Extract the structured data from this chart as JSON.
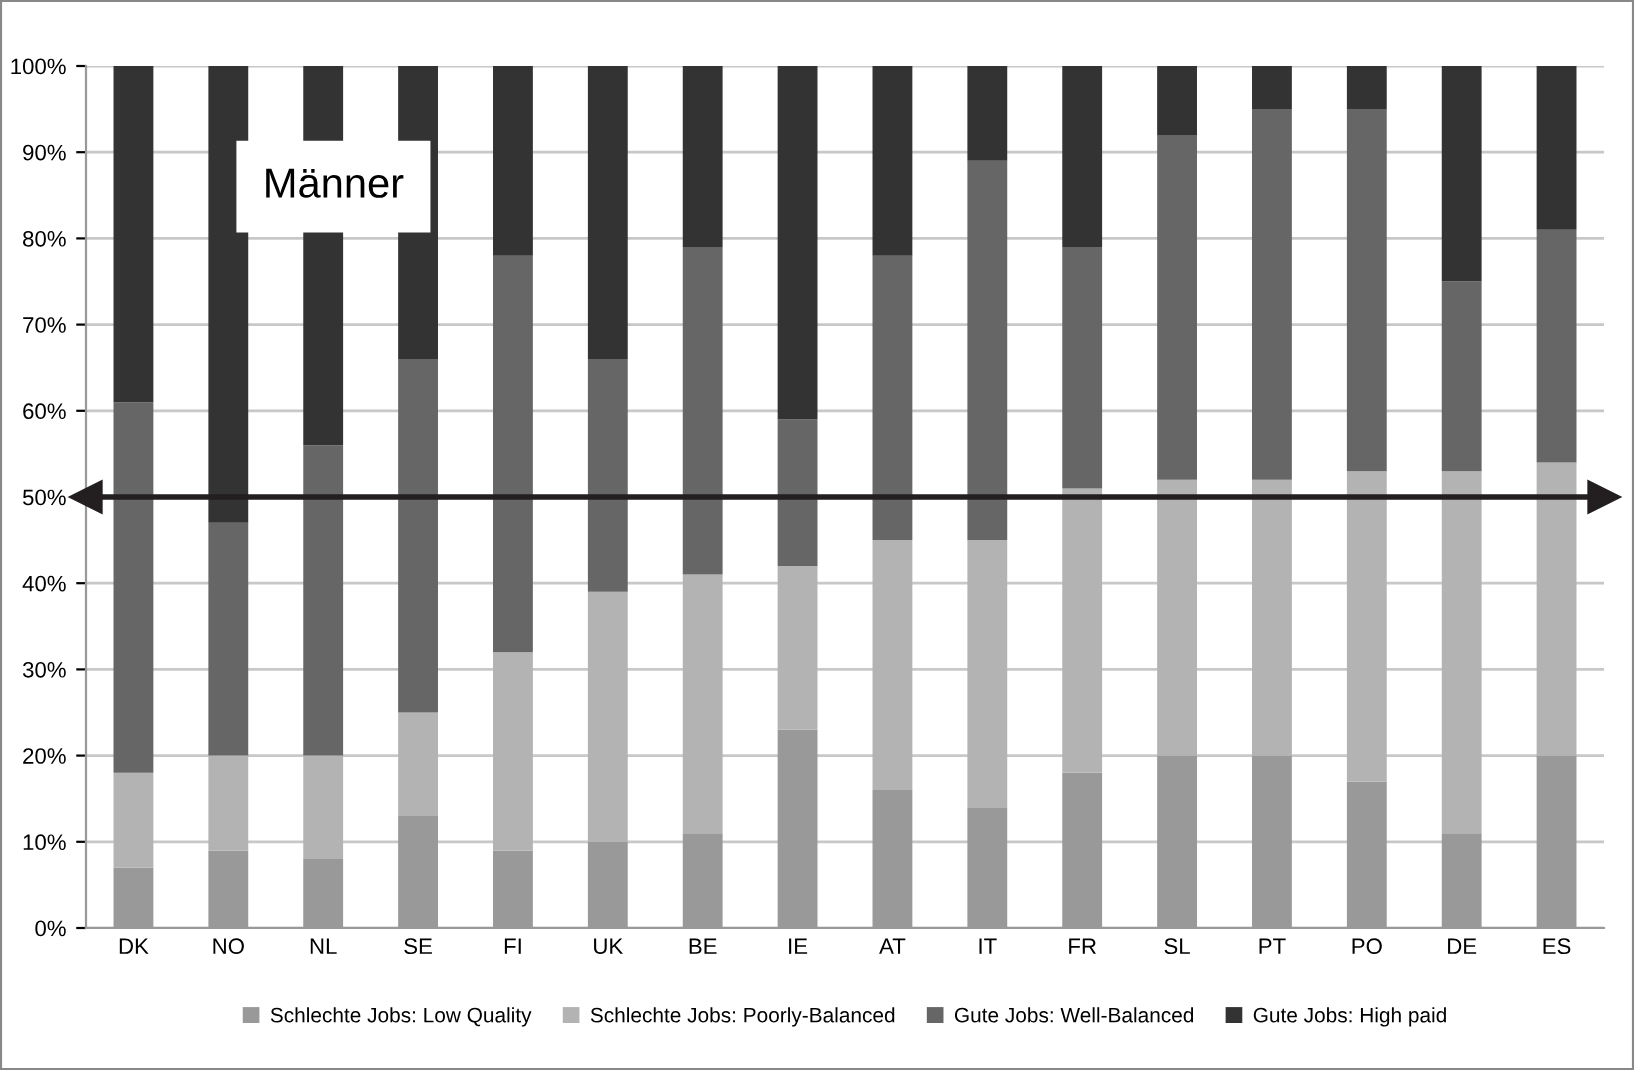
{
  "chart_data": {
    "type": "bar",
    "stacked": true,
    "categories": [
      "DK",
      "NO",
      "NL",
      "SE",
      "FI",
      "UK",
      "BE",
      "IE",
      "AT",
      "IT",
      "FR",
      "SL",
      "PT",
      "PO",
      "DE",
      "ES"
    ],
    "series": [
      {
        "name": "Schlechte Jobs: Low Quality",
        "color": "#999999",
        "values": [
          7,
          9,
          8,
          13,
          9,
          10,
          11,
          23,
          16,
          14,
          18,
          20,
          20,
          17,
          11,
          20
        ]
      },
      {
        "name": "Schlechte Jobs: Poorly-Balanced",
        "color": "#b3b3b3",
        "values": [
          11,
          11,
          12,
          12,
          23,
          29,
          30,
          19,
          29,
          31,
          33,
          32,
          32,
          36,
          42,
          34
        ]
      },
      {
        "name": "Gute Jobs: Well-Balanced",
        "color": "#666666",
        "values": [
          43,
          27,
          36,
          41,
          46,
          27,
          38,
          17,
          33,
          44,
          28,
          40,
          43,
          42,
          22,
          27
        ]
      },
      {
        "name": "Gute Jobs: High paid",
        "color": "#333333",
        "values": [
          39,
          53,
          44,
          34,
          22,
          34,
          21,
          41,
          22,
          11,
          21,
          8,
          5,
          5,
          25,
          19
        ]
      }
    ],
    "ylim": [
      0,
      100
    ],
    "yticks": [
      {
        "value": 0,
        "label": "0%"
      },
      {
        "value": 10,
        "label": "10%"
      },
      {
        "value": 20,
        "label": "20%"
      },
      {
        "value": 30,
        "label": "30%"
      },
      {
        "value": 40,
        "label": "40%"
      },
      {
        "value": 50,
        "label": "50%"
      },
      {
        "value": 60,
        "label": "60%"
      },
      {
        "value": 70,
        "label": "70%"
      },
      {
        "value": 80,
        "label": "80%"
      },
      {
        "value": 90,
        "label": "90%"
      },
      {
        "value": 100,
        "label": "100%"
      }
    ],
    "grid": "y",
    "legend": "bottom",
    "ref_lines": [
      {
        "axis": "y",
        "value": 50,
        "color": "#231f20"
      }
    ],
    "annotations": [
      "Männer"
    ]
  }
}
